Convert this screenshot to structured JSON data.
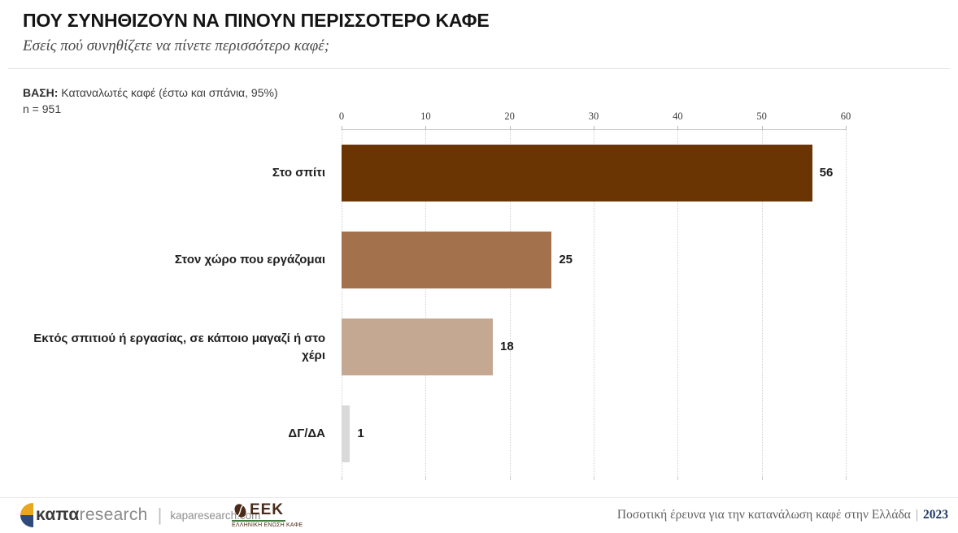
{
  "header": {
    "title": "ΠΟΥ ΣΥΝΗΘΙΖΟΥΝ ΝΑ ΠΙΝΟΥΝ ΠΕΡΙΣΣΟΤΕΡΟ ΚΑΦΕ",
    "subtitle": "Εσείς πού συνηθίζετε να πίνετε περισσότερο καφέ;"
  },
  "base": {
    "label": "ΒΑΣΗ:",
    "text": " Καταναλωτές καφέ (έστω και σπάνια, 95%)",
    "n": "n = 951"
  },
  "chart_data": {
    "type": "bar",
    "orientation": "horizontal",
    "categories": [
      "Στο σπίτι",
      "Στον χώρο που εργάζομαι",
      "Εκτός σπιτιού ή εργασίας, σε κάποιο μαγαζί ή στο χέρι",
      "ΔΓ/ΔΑ"
    ],
    "values": [
      56,
      25,
      18,
      1
    ],
    "bar_colors": [
      "#6b3503",
      "#a3724c",
      "#c4a892",
      "#d9d9d9"
    ],
    "xlim": [
      0,
      60
    ],
    "x_ticks": [
      0,
      10,
      20,
      30,
      40,
      50,
      60
    ],
    "grid": "vertical-dotted",
    "value_labels": true,
    "title": "ΠΟΥ ΣΥΝΗΘΙΖΟΥΝ ΝΑ ΠΙΝΟΥΝ ΠΕΡΙΣΣΟΤΕΡΟ ΚΑΦΕ"
  },
  "footer": {
    "kapa_brand_bold": "καπα",
    "kapa_brand_light": "research",
    "kapa_separator": "|",
    "kapa_site": "kaparesearch.com",
    "kapa_icon_top_color": "#e8a71e",
    "kapa_icon_bottom_color": "#2e4a7a",
    "eek_name": "EEK",
    "eek_subtitle": "ΕΛΛΗΝΙΚΗ ΕΝΩΣΗ ΚΑΦΕ",
    "eek_color": "#4a2a18",
    "eek_line_color": "#3e7d3e",
    "right_text": "Ποσοτική έρευνα για την κατανάλωση καφέ στην Ελλάδα",
    "right_separator": "|",
    "year": "2023",
    "year_color": "#1f3864"
  }
}
